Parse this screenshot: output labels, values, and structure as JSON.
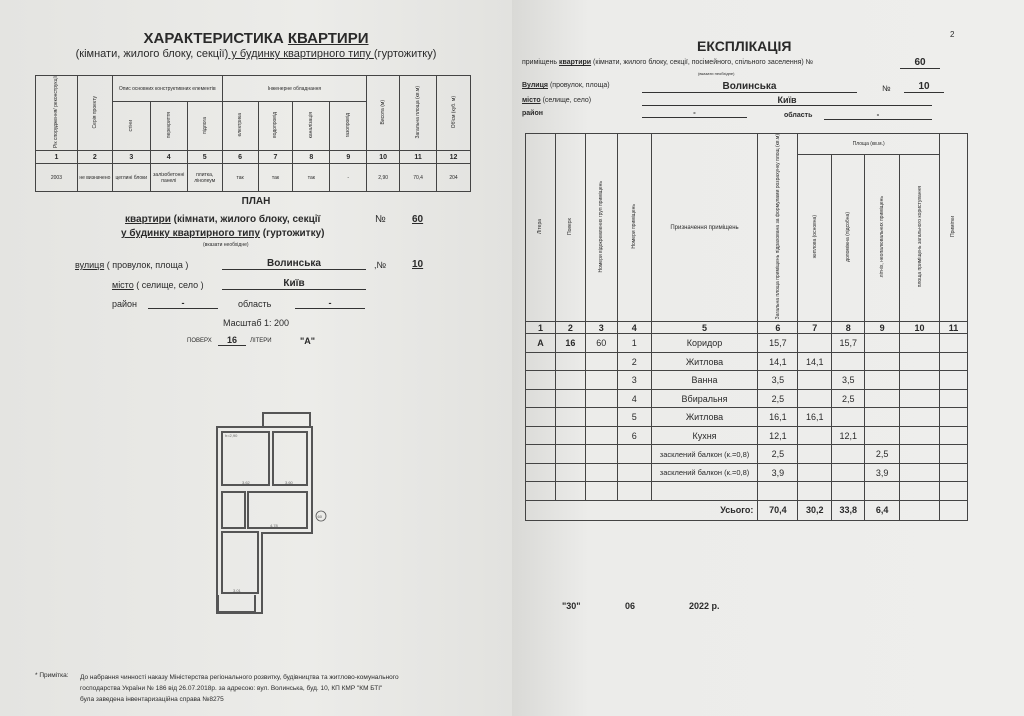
{
  "left": {
    "title_a": "ХАРАКТЕРИСТИКА ",
    "title_b": "КВАРТИРИ",
    "subtitle_a": "(кімнати, жилого блоку, секції)",
    "subtitle_b": " у будинку квартирного типу ",
    "subtitle_c": "(гуртожитку)",
    "table": {
      "group_headers": [
        "Опис основних конструктивних елементів",
        "Інженерне обладнання"
      ],
      "headers": [
        "Рік спорудження/ реконструкції",
        "Серія проекту",
        "стіни",
        "перекриття",
        "підлога",
        "електрика",
        "водопровід",
        "каналізація",
        "газопровід",
        "Висота (м)",
        "Загальна площа (кв.м)",
        "Об'єм (куб. м)"
      ],
      "numbers": [
        "1",
        "2",
        "3",
        "4",
        "5",
        "6",
        "7",
        "8",
        "9",
        "10",
        "11",
        "12"
      ],
      "row": [
        "2003",
        "не визначено",
        "цеглині блоки",
        "залізобетонні панелі",
        "плитка, лінолеум",
        "так",
        "так",
        "так",
        "-",
        "2,90",
        "70,4",
        "204"
      ]
    },
    "plan": {
      "title": "ПЛАН",
      "line1_a": "квартири",
      "line1_b": " (кімнати, жилого блоку, секції",
      "no_label": "№",
      "apt_no": "60",
      "line2_a": "у будинку квартирного типу",
      "line2_b": " (гуртожитку)",
      "hint": "(вказати необхідне)",
      "street_label_a": "вулиця",
      "street_label_b": " ( провулок, площа )",
      "street": "Волинська",
      "house_label": ",№",
      "house_no": "10",
      "city_label_a": "місто",
      "city_label_b": " ( селище, село )",
      "city": "Київ",
      "district_label": "район",
      "district": "-",
      "region_label": "область",
      "region": "-",
      "scale": "Масштаб 1: 200",
      "floor_label": "ПОВЕРХ",
      "floor": "16",
      "liter_label": "ЛІТЕРИ",
      "liter": "\"А\"",
      "plan_marks": [
        "h=2,90",
        "3.62",
        "3.60",
        "4.78",
        "3.01",
        "60"
      ]
    },
    "note": {
      "label": "* Примітка:",
      "text1": "До набрання чинності  наказу Міністерства регіонального розвитку, будівництва та житлово-комунального",
      "text2": "господарства України № 186 від 26.07.2018р.  за адресою: вул. Волинська, буд. 10, КП КМР \"КМ БТІ\"",
      "text3": "була заведена інвентаризаційна справа №8275"
    }
  },
  "right": {
    "page_no": "2",
    "title": "ЕКСПЛІКАЦІЯ",
    "sub_a": "приміщень ",
    "sub_b": "квартири",
    "sub_c": " (кімнати, жилого блоку, секції, посімейного, спільного заселення) №",
    "apt_no": "60",
    "hint": "(вказати необхідне)",
    "street_label_a": "Вулиця",
    "street_label_b": " (провулок, площа)",
    "street": "Волинська",
    "house_label": "№",
    "house_no": "10",
    "city_label_a": "місто",
    "city_label_b": " (селище, село)",
    "city": "Київ",
    "district_label": "район",
    "district": "-",
    "region_label": "область",
    "region": "-",
    "table": {
      "area_group": "Площа (кв.м.)",
      "headers": [
        "Літера",
        "Поверх",
        "Номери відокремлених груп приміщень",
        "Номери приміщень",
        "Призначення приміщень",
        "Загальна площа приміщень підрахована за формулами розрахунку площ (кв.м)",
        "житлова (основна)",
        "допоміжна (підсобна)",
        "літніх, неопалювальних приміщень",
        "площа приміщень загального користування",
        "Примітки"
      ],
      "numbers": [
        "1",
        "2",
        "3",
        "4",
        "5",
        "6",
        "7",
        "8",
        "9",
        "10",
        "11"
      ],
      "rows": [
        [
          "А",
          "16",
          "60",
          "1",
          "Коридор",
          "15,7",
          "",
          "15,7",
          "",
          "",
          ""
        ],
        [
          "",
          "",
          "",
          "2",
          "Житлова",
          "14,1",
          "14,1",
          "",
          "",
          "",
          ""
        ],
        [
          "",
          "",
          "",
          "3",
          "Ванна",
          "3,5",
          "",
          "3,5",
          "",
          "",
          ""
        ],
        [
          "",
          "",
          "",
          "4",
          "Вбиральня",
          "2,5",
          "",
          "2,5",
          "",
          "",
          ""
        ],
        [
          "",
          "",
          "",
          "5",
          "Житлова",
          "16,1",
          "16,1",
          "",
          "",
          "",
          ""
        ],
        [
          "",
          "",
          "",
          "6",
          "Кухня",
          "12,1",
          "",
          "12,1",
          "",
          "",
          ""
        ],
        [
          "",
          "",
          "",
          "",
          "засклений балкон (к.=0,8)",
          "2,5",
          "",
          "",
          "2,5",
          "",
          ""
        ],
        [
          "",
          "",
          "",
          "",
          "засклений балкон (к.=0,8)",
          "3,9",
          "",
          "",
          "3,9",
          "",
          ""
        ],
        [
          "",
          "",
          "",
          "",
          "",
          "",
          "",
          "",
          "",
          "",
          ""
        ]
      ],
      "total": [
        "Усього:",
        "70,4",
        "30,2",
        "33,8",
        "6,4"
      ]
    },
    "date": {
      "day": "\"30\"",
      "month": "06",
      "year": "2022 р."
    }
  }
}
